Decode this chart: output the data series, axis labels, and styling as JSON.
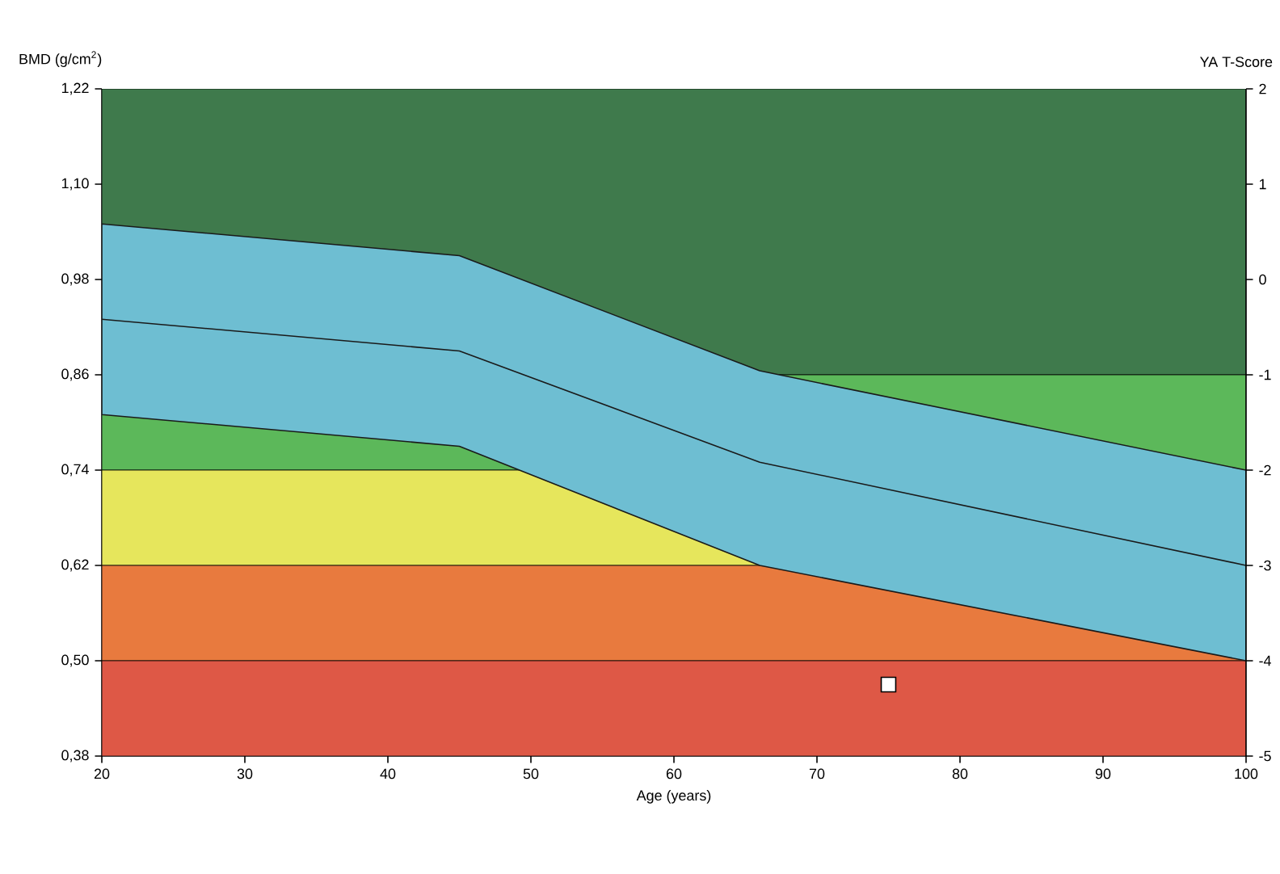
{
  "chart_data": {
    "type": "line",
    "xlabel": "Age (years)",
    "ylabel": "BMD (g/cm$^{2}$)",
    "y2label": "YA T-Score",
    "xlim": [
      20,
      100
    ],
    "xticks": [
      20,
      30,
      40,
      50,
      60,
      70,
      80,
      90,
      100
    ],
    "ylim": [
      0.38,
      1.22
    ],
    "yticks": [
      {
        "value": 0.38,
        "label": "0,38"
      },
      {
        "value": 0.5,
        "label": "0,50"
      },
      {
        "value": 0.62,
        "label": "0,62"
      },
      {
        "value": 0.74,
        "label": "0,74"
      },
      {
        "value": 0.86,
        "label": "0,86"
      },
      {
        "value": 0.98,
        "label": "0,98"
      },
      {
        "value": 1.1,
        "label": "1,10"
      },
      {
        "value": 1.22,
        "label": "1,22"
      }
    ],
    "y2lim": [
      -5,
      2
    ],
    "y2ticks": [
      -5,
      -4,
      -3,
      -2,
      -1,
      0,
      1,
      2
    ],
    "bands": [
      {
        "axis": "y",
        "from": 0.86,
        "to": 1.22,
        "color": "#3f7a4c"
      },
      {
        "axis": "y",
        "from": 0.74,
        "to": 0.86,
        "color": "#5cb85a"
      },
      {
        "axis": "y",
        "from": 0.62,
        "to": 0.74,
        "color": "#e6e65c"
      },
      {
        "axis": "y",
        "from": 0.5,
        "to": 0.62,
        "color": "#e87a3e"
      },
      {
        "axis": "y",
        "from": 0.38,
        "to": 0.5,
        "color": "#de5846"
      }
    ],
    "series": [
      {
        "color": "#1a1a1a",
        "x": [
          20,
          45,
          66,
          100
        ],
        "values": [
          0.93,
          0.89,
          0.75,
          0.62
        ],
        "lower": [
          0.81,
          0.77,
          0.62,
          0.5
        ],
        "upper": [
          1.05,
          1.01,
          0.865,
          0.74
        ]
      },
      {
        "type": "scatter",
        "marker": "square",
        "color": "#ffffff",
        "x": [
          75
        ],
        "values": [
          0.47
        ]
      }
    ]
  }
}
